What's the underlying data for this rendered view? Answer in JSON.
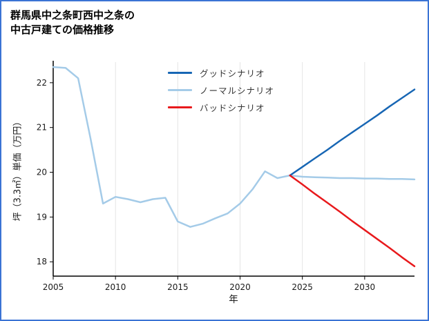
{
  "page": {
    "border_color": "#3a73d4",
    "background": "#ffffff"
  },
  "title": {
    "line1": "群馬県中之条町西中之条の",
    "line2": "中古戸建ての価格推移"
  },
  "legend": {
    "entries": [
      {
        "label": "グッドシナリオ",
        "color": "#1766b4"
      },
      {
        "label": "ノーマルシナリオ",
        "color": "#a4cbe8"
      },
      {
        "label": "バッドシナリオ",
        "color": "#e8191c"
      }
    ]
  },
  "chart_data": {
    "type": "line",
    "title": "群馬県中之条町西中之条の中古戸建ての価格推移",
    "xlabel": "年",
    "ylabel": "坪（3.3㎡）単価（万円）",
    "xlim": [
      2005,
      2034
    ],
    "ylim": [
      17.68,
      22.46
    ],
    "xticks": [
      2005,
      2010,
      2015,
      2020,
      2025,
      2030
    ],
    "yticks": [
      18,
      19,
      20,
      21,
      22
    ],
    "grid": "vertical-light-gray",
    "legend_position": "upper-center-inside",
    "series": [
      {
        "name": "ノーマルシナリオ",
        "color": "#a4cbe8",
        "x": [
          2005,
          2006,
          2007,
          2008,
          2009,
          2010,
          2011,
          2012,
          2013,
          2014,
          2015,
          2016,
          2017,
          2018,
          2019,
          2020,
          2021,
          2022,
          2023,
          2024,
          2025,
          2026,
          2027,
          2028,
          2029,
          2030,
          2031,
          2032,
          2033,
          2034
        ],
        "values": [
          22.35,
          22.33,
          22.1,
          20.75,
          19.3,
          19.45,
          19.4,
          19.33,
          19.4,
          19.43,
          18.9,
          18.78,
          18.85,
          18.97,
          19.08,
          19.3,
          19.62,
          20.02,
          19.87,
          19.93,
          19.9,
          19.89,
          19.88,
          19.87,
          19.87,
          19.86,
          19.86,
          19.85,
          19.85,
          19.84
        ]
      },
      {
        "name": "グッドシナリオ",
        "color": "#1766b4",
        "x": [
          2024,
          2025,
          2026,
          2027,
          2028,
          2029,
          2030,
          2031,
          2032,
          2033,
          2034
        ],
        "values": [
          19.93,
          20.12,
          20.31,
          20.5,
          20.7,
          20.89,
          21.08,
          21.27,
          21.47,
          21.66,
          21.85
        ]
      },
      {
        "name": "バッドシナリオ",
        "color": "#e8191c",
        "x": [
          2024,
          2025,
          2026,
          2027,
          2028,
          2029,
          2030,
          2031,
          2032,
          2033,
          2034
        ],
        "values": [
          19.93,
          19.73,
          19.52,
          19.32,
          19.12,
          18.91,
          18.71,
          18.51,
          18.31,
          18.1,
          17.9
        ]
      }
    ]
  }
}
